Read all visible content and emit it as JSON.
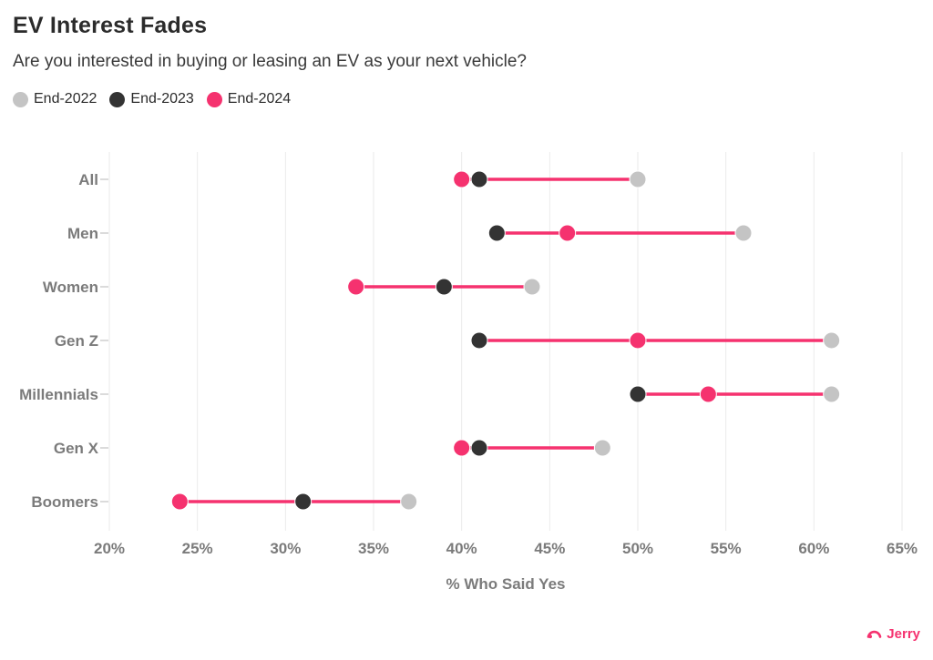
{
  "header": {
    "title": "EV Interest Fades",
    "subtitle": "Are you interested in buying or leasing an EV as your next vehicle?"
  },
  "chart_data": {
    "type": "dumbbell",
    "categories": [
      "All",
      "Men",
      "Women",
      "Gen Z",
      "Millennials",
      "Gen X",
      "Boomers"
    ],
    "series": [
      {
        "name": "End-2022",
        "color": "#c4c4c4",
        "values": [
          50,
          56,
          44,
          61,
          61,
          48,
          37
        ]
      },
      {
        "name": "End-2023",
        "color": "#333333",
        "values": [
          41,
          42,
          39,
          41,
          50,
          41,
          31
        ]
      },
      {
        "name": "End-2024",
        "color": "#f5326f",
        "values": [
          40,
          46,
          34,
          50,
          54,
          40,
          24
        ]
      }
    ],
    "xlabel": "% Who Said Yes",
    "xlim": [
      20,
      65
    ],
    "xticks": [
      20,
      25,
      30,
      35,
      40,
      45,
      50,
      55,
      60,
      65
    ],
    "tick_suffix": "%",
    "connector_color": "#f5326f",
    "grid": true,
    "gridline_color": "#eaeaea",
    "axis_tick_color": "#cfcfcf",
    "legend_position": "top-left"
  },
  "footer": {
    "brand": "Jerry",
    "brand_color": "#f5326f"
  }
}
